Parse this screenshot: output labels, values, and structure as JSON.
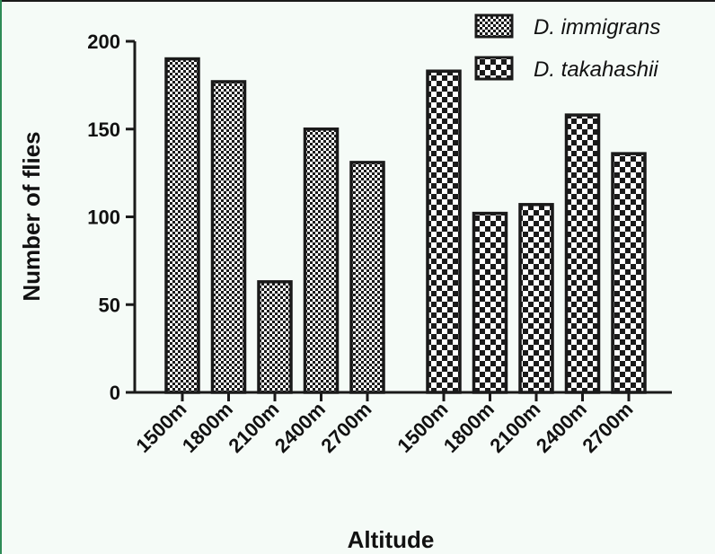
{
  "chart_data": {
    "type": "bar",
    "categories": [
      "1500m",
      "1800m",
      "2100m",
      "2400m",
      "2700m"
    ],
    "series": [
      {
        "name": "D. immigrans",
        "values": [
          190,
          177,
          63,
          150,
          131
        ],
        "pattern": "fine-checker"
      },
      {
        "name": "D. takahashii",
        "values": [
          183,
          102,
          107,
          158,
          136
        ],
        "pattern": "coarse-checker"
      }
    ],
    "xlabel": "Altitude",
    "ylabel": "Number of flies",
    "ylim": [
      0,
      200
    ],
    "yticks": [
      0,
      50,
      100,
      150,
      200
    ],
    "grid": false,
    "legend": "top-right"
  },
  "colors": {
    "background": "#f5fbf7",
    "ink": "#1a1a1a",
    "pattern_light": "#ffffff",
    "frame_top": "#1a1a1a",
    "frame_left": "#2e8b57"
  }
}
